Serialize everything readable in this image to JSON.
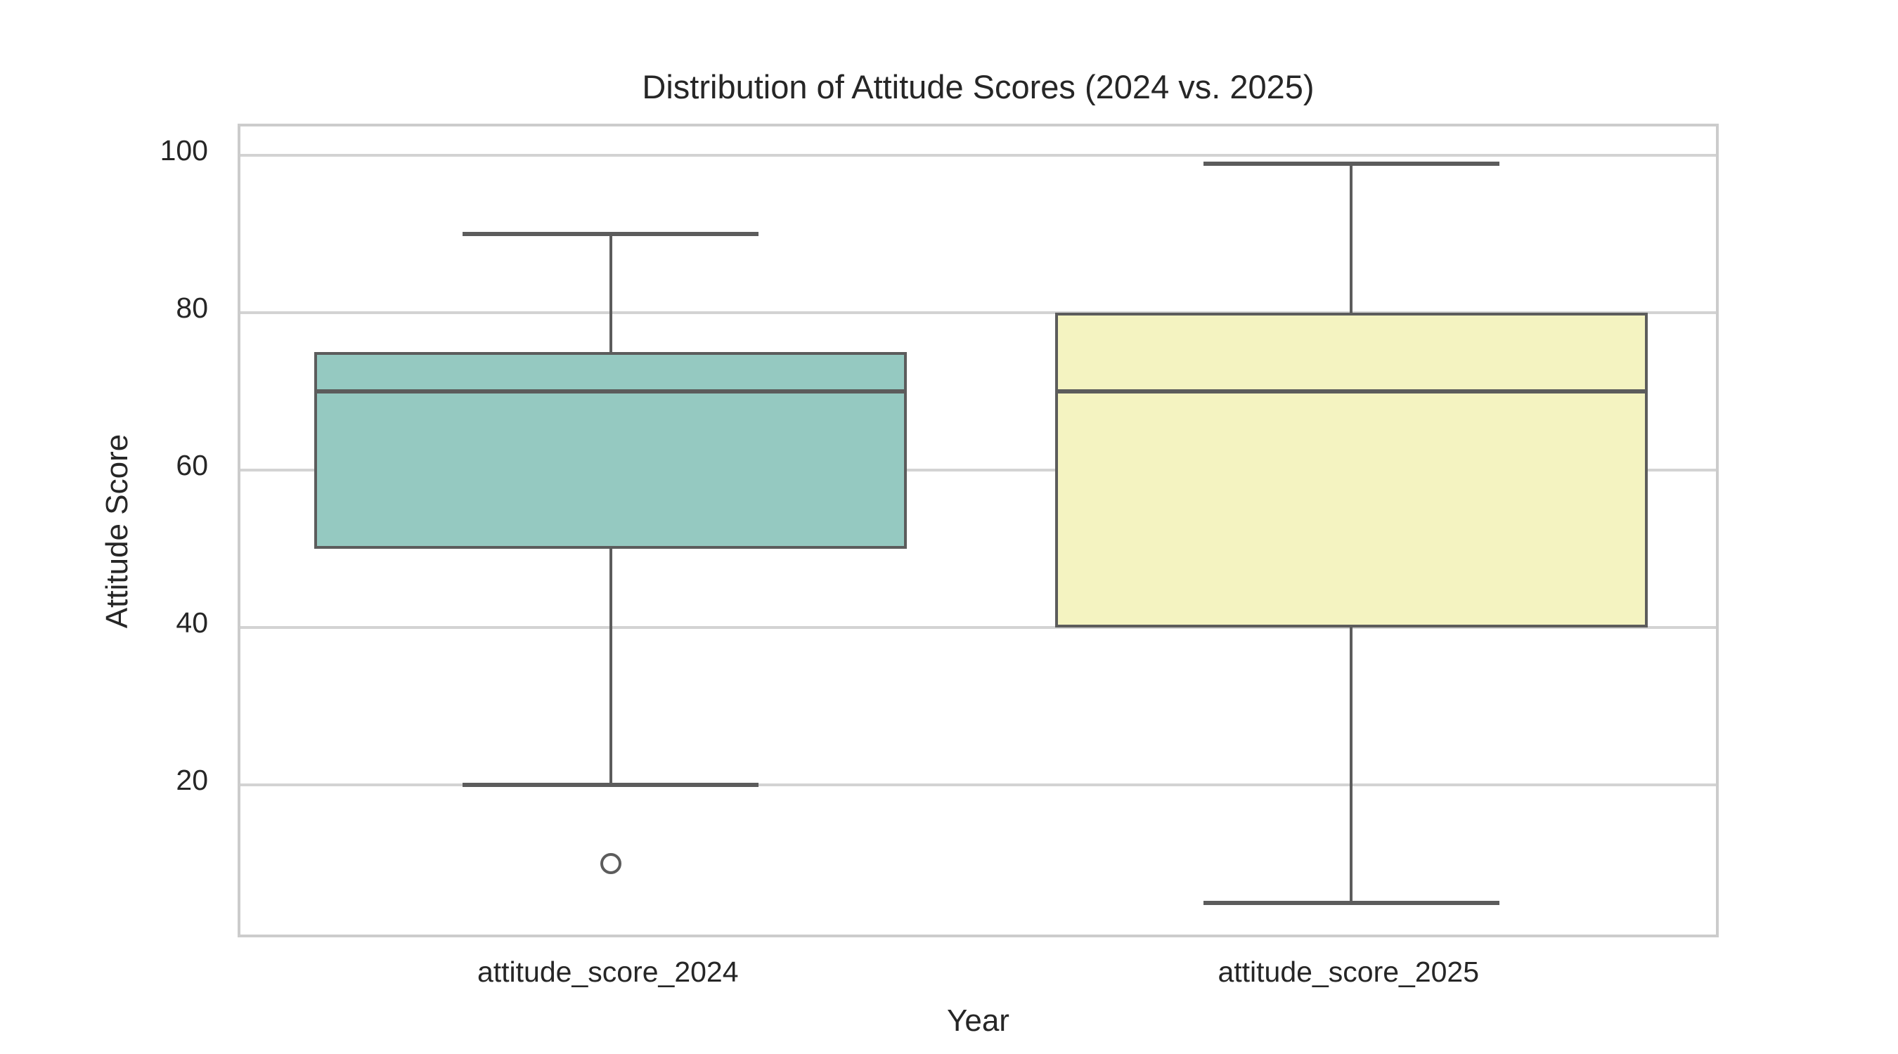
{
  "chart_data": {
    "type": "boxplot",
    "title": "Distribution of Attitude Scores (2024 vs. 2025)",
    "xlabel": "Year",
    "ylabel": "Attitude Score",
    "categories": [
      "attitude_score_2024",
      "attitude_score_2025"
    ],
    "series": [
      {
        "name": "attitude_score_2024",
        "whisker_low": 20,
        "q1": 50,
        "median": 70,
        "q3": 75,
        "whisker_high": 90,
        "outliers": [
          10
        ],
        "fill_color": "#95c9c1"
      },
      {
        "name": "attitude_score_2025",
        "whisker_low": 5,
        "q1": 40,
        "median": 70,
        "q3": 80,
        "whisker_high": 99,
        "outliers": [],
        "fill_color": "#f4f3c1"
      }
    ],
    "yticks": [
      20,
      40,
      60,
      80,
      100
    ],
    "ylim": [
      0.3,
      103.7
    ],
    "grid": true,
    "legend": "none",
    "colors": {
      "box_edge": "#5c5c5c",
      "gridline": "#d3d3d3",
      "plot_border": "#cccccc",
      "text": "#262626",
      "background": "#ffffff"
    }
  }
}
